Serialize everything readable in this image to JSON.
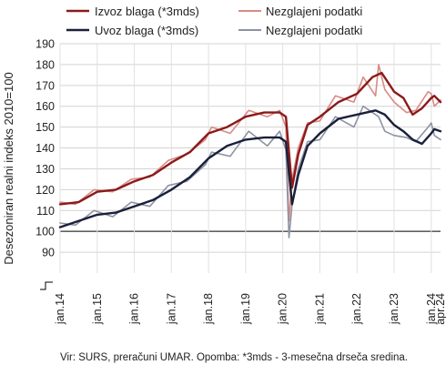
{
  "chart_data": {
    "type": "line",
    "ylabel": "Desezoniran realni indeks 2010=100",
    "ylim": [
      80,
      190
    ],
    "yticks": [
      90,
      100,
      110,
      120,
      130,
      140,
      150,
      160,
      170,
      180,
      190
    ],
    "baseline": 100,
    "xlim": [
      "2014-01",
      "2024-04"
    ],
    "xticks": [
      "jan.14",
      "jan.15",
      "jan.16",
      "jan.17",
      "jan.18",
      "jan.19",
      "jan.20",
      "jan.21",
      "jan.22",
      "jan.23",
      "jan.24",
      "apr.24"
    ],
    "grid": true,
    "legend": {
      "position": "top",
      "entries": [
        "Izvoz blaga (*3mds)",
        "Nezglajeni podatki",
        "Uvoz blaga (*3mds)",
        "Nezglajeni podatki"
      ]
    },
    "series": [
      {
        "name": "Izvoz blaga (*3mds)",
        "color": "#8b1a1a",
        "style": "smoothed",
        "x": [
          "2014-01",
          "2014-07",
          "2015-01",
          "2015-07",
          "2016-01",
          "2016-07",
          "2017-01",
          "2017-07",
          "2018-01",
          "2018-07",
          "2019-01",
          "2019-07",
          "2019-12",
          "2020-02",
          "2020-04",
          "2020-06",
          "2020-09",
          "2021-01",
          "2021-07",
          "2022-01",
          "2022-06",
          "2022-09",
          "2023-01",
          "2023-04",
          "2023-07",
          "2023-10",
          "2024-01",
          "2024-02",
          "2024-04"
        ],
        "values": [
          113,
          114,
          119,
          120,
          124,
          127,
          133,
          138,
          147,
          150,
          155,
          157,
          157,
          155,
          121,
          137,
          151,
          155,
          162,
          166,
          174,
          176,
          167,
          164,
          156,
          159,
          164,
          165,
          162
        ]
      },
      {
        "name": "Nezglajeni podatki",
        "color": "#d98a85",
        "style": "raw",
        "x": [
          "2014-01",
          "2014-06",
          "2014-12",
          "2015-06",
          "2015-12",
          "2016-06",
          "2016-12",
          "2017-06",
          "2017-12",
          "2018-02",
          "2018-08",
          "2019-02",
          "2019-08",
          "2019-12",
          "2020-02",
          "2020-03",
          "2020-04",
          "2020-06",
          "2020-09",
          "2021-01",
          "2021-06",
          "2021-12",
          "2022-03",
          "2022-07",
          "2022-08",
          "2022-10",
          "2023-01",
          "2023-05",
          "2023-08",
          "2023-12",
          "2024-01",
          "2024-02",
          "2024-04"
        ],
        "values": [
          114,
          113,
          120,
          119,
          125,
          126,
          134,
          137,
          144,
          150,
          147,
          158,
          155,
          158,
          150,
          105,
          125,
          140,
          152,
          153,
          165,
          162,
          174,
          165,
          180,
          168,
          162,
          157,
          158,
          167,
          166,
          160,
          163
        ]
      },
      {
        "name": "Uvoz blaga (*3mds)",
        "color": "#1a1f3a",
        "style": "smoothed",
        "x": [
          "2014-01",
          "2014-07",
          "2015-01",
          "2015-07",
          "2016-01",
          "2016-07",
          "2017-01",
          "2017-07",
          "2018-01",
          "2018-07",
          "2019-01",
          "2019-07",
          "2019-12",
          "2020-02",
          "2020-04",
          "2020-06",
          "2020-09",
          "2021-01",
          "2021-07",
          "2022-01",
          "2022-07",
          "2022-10",
          "2023-01",
          "2023-04",
          "2023-07",
          "2023-10",
          "2024-01",
          "2024-02",
          "2024-04"
        ],
        "values": [
          102,
          105,
          108,
          109,
          112,
          115,
          120,
          126,
          135,
          141,
          144,
          145,
          145,
          143,
          113,
          127,
          141,
          147,
          154,
          156,
          158,
          156,
          151,
          148,
          144,
          142,
          147,
          149,
          148
        ]
      },
      {
        "name": "Nezglajeni podatki",
        "color": "#8d93a3",
        "style": "raw",
        "x": [
          "2014-01",
          "2014-06",
          "2014-12",
          "2015-06",
          "2015-12",
          "2016-06",
          "2016-12",
          "2017-06",
          "2017-12",
          "2018-02",
          "2018-08",
          "2019-02",
          "2019-08",
          "2019-12",
          "2020-02",
          "2020-03",
          "2020-04",
          "2020-06",
          "2020-09",
          "2021-01",
          "2021-06",
          "2021-12",
          "2022-03",
          "2022-08",
          "2022-10",
          "2023-01",
          "2023-05",
          "2023-08",
          "2023-12",
          "2024-01",
          "2024-02",
          "2024-04"
        ],
        "values": [
          104,
          103,
          110,
          107,
          114,
          112,
          122,
          124,
          132,
          138,
          136,
          148,
          141,
          148,
          139,
          97,
          113,
          130,
          143,
          144,
          155,
          150,
          160,
          155,
          148,
          146,
          145,
          143,
          150,
          152,
          146,
          144
        ]
      }
    ],
    "source_note": "Vir: SURS, preračuni UMAR. Opomba: *3mds - 3-mesečna drseča sredina."
  }
}
